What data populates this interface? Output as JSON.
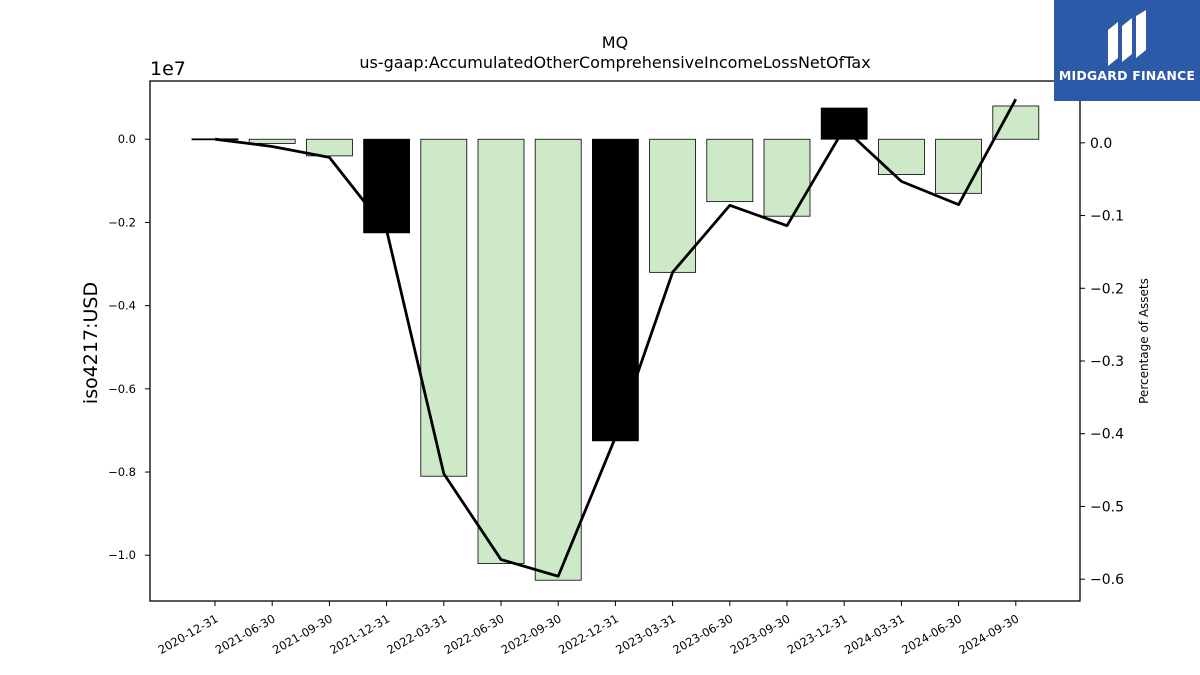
{
  "chart_data": {
    "type": "bar",
    "title_line1": "MQ",
    "title_line2": "us-gaap:AccumulatedOtherComprehensiveIncomeLossNetOfTax",
    "ylabel": "iso4217:USD",
    "y2label": "Percentage of Assets",
    "y_offset_label": "1e7",
    "categories": [
      "2020-12-31",
      "2021-06-30",
      "2021-09-30",
      "2021-12-31",
      "2022-03-31",
      "2022-06-30",
      "2022-09-30",
      "2022-12-31",
      "2023-03-31",
      "2023-06-30",
      "2023-09-30",
      "2023-12-31",
      "2024-03-31",
      "2024-06-30",
      "2024-09-30"
    ],
    "series": [
      {
        "values": [
          0.01,
          -0.1,
          -0.4,
          -2.25,
          -8.1,
          -10.2,
          -10.6,
          -7.25,
          -3.2,
          -1.5,
          -1.85,
          0.75,
          -0.85,
          -1.3,
          0.8
        ],
        "colors": [
          "#000000",
          "#cde9c7",
          "#cde9c7",
          "#000000",
          "#cde9c7",
          "#cde9c7",
          "#cde9c7",
          "#000000",
          "#cde9c7",
          "#cde9c7",
          "#cde9c7",
          "#000000",
          "#cde9c7",
          "#cde9c7",
          "#cde9c7"
        ]
      },
      {
        "values": [
          0.005,
          -0.005,
          -0.02,
          -0.12,
          -0.455,
          -0.573,
          -0.596,
          -0.405,
          -0.178,
          -0.086,
          -0.114,
          0.02,
          -0.053,
          -0.085,
          0.06
        ]
      }
    ],
    "ylim": [
      -11.1,
      1.4
    ],
    "y2lim": [
      -0.63,
      0.085
    ],
    "yticks": [
      0.0,
      -0.2,
      -0.4,
      -0.6,
      -0.8,
      -1.0
    ],
    "y2ticks": [
      0.0,
      -0.1,
      -0.2,
      -0.3,
      -0.4,
      -0.5,
      -0.6
    ],
    "grid": false
  },
  "logo": {
    "text": "MIDGARD FINANCE"
  }
}
